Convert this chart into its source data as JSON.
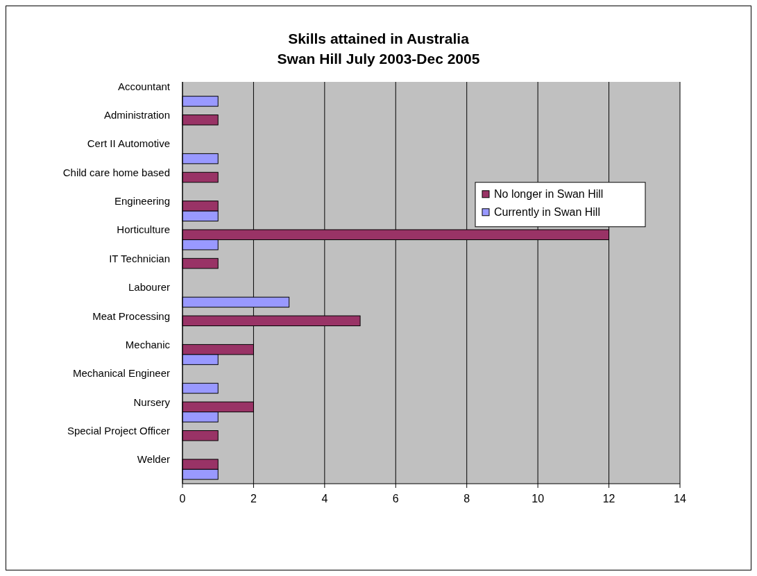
{
  "chart_data": {
    "type": "bar",
    "orientation": "horizontal",
    "title": "Skills attained in Australia\nSwan Hill July 2003-Dec 2005",
    "categories": [
      "Accountant",
      "Administration",
      "Cert II Automotive",
      "Child care home based",
      "Engineering",
      "Horticulture",
      "IT Technician",
      "Labourer",
      "Meat Processing",
      "Mechanic",
      "Mechanical Engineer",
      "Nursery",
      "Special Project Officer",
      "Welder"
    ],
    "series": [
      {
        "name": "No longer in Swan Hill",
        "color": "#993366",
        "values": [
          null,
          1,
          null,
          1,
          1,
          12,
          1,
          null,
          5,
          2,
          null,
          2,
          1,
          1
        ]
      },
      {
        "name": "Currently in Swan Hill",
        "color": "#9999ff",
        "values": [
          1,
          null,
          1,
          null,
          1,
          1,
          null,
          3,
          null,
          1,
          1,
          1,
          null,
          1
        ]
      }
    ],
    "xlim": [
      0,
      14
    ],
    "xticks": [
      0,
      2,
      4,
      6,
      8,
      10,
      12,
      14
    ],
    "grid": "x",
    "legend": "right"
  }
}
